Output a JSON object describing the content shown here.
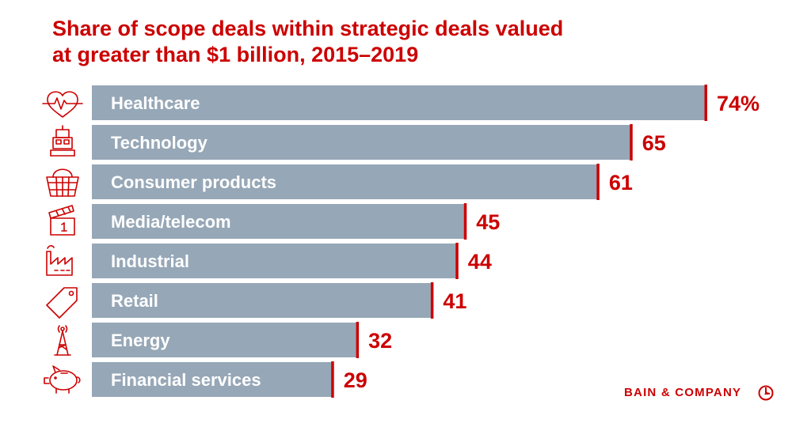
{
  "title_lines": [
    "Share of scope deals within strategic deals valued",
    "at greater than $1 billion, 2015–2019"
  ],
  "brand": "BAIN & COMPANY",
  "colors": {
    "bar": "#96a7b7",
    "accent": "#cc0000",
    "background": "#ffffff"
  },
  "chart_data": {
    "type": "bar",
    "orientation": "horizontal",
    "title": "Share of scope deals within strategic deals valued at greater than $1 billion, 2015–2019",
    "unit": "%",
    "categories": [
      "Healthcare",
      "Technology",
      "Consumer products",
      "Media/telecom",
      "Industrial",
      "Retail",
      "Energy",
      "Financial services"
    ],
    "values": [
      74,
      65,
      61,
      45,
      44,
      41,
      32,
      29
    ],
    "value_labels": [
      "74%",
      "65",
      "61",
      "45",
      "44",
      "41",
      "32",
      "29"
    ],
    "icons": [
      "heart-pulse-icon",
      "robot-icon",
      "shopping-basket-icon",
      "clapperboard-icon",
      "factory-icon",
      "price-tag-icon",
      "energy-tower-icon",
      "piggy-bank-icon"
    ],
    "xlim": [
      0,
      74
    ],
    "xlabel": "",
    "ylabel": "",
    "grid": false,
    "legend": "none"
  }
}
